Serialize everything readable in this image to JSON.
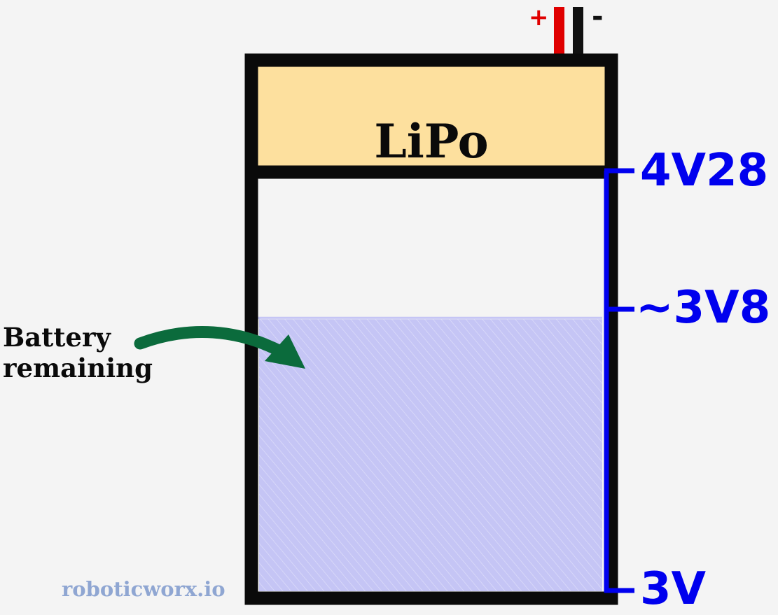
{
  "battery": {
    "title": "LiPo",
    "terminal_positive": "+",
    "terminal_negative": "-",
    "remaining_fraction": 0.66
  },
  "scale": {
    "top": "4V28",
    "middle": "~3V8",
    "bottom": "3V"
  },
  "annotation": {
    "line1": "Battery",
    "line2": "remaining"
  },
  "watermark": "roboticworx.io",
  "colors": {
    "outline": "#0a0a0a",
    "label_band": "#fde09e",
    "fill": "#c5c5f5",
    "scale": "#0000ee",
    "arrow": "#0b6b3c",
    "positive": "#e00000",
    "watermark": "#8fa6d2"
  }
}
